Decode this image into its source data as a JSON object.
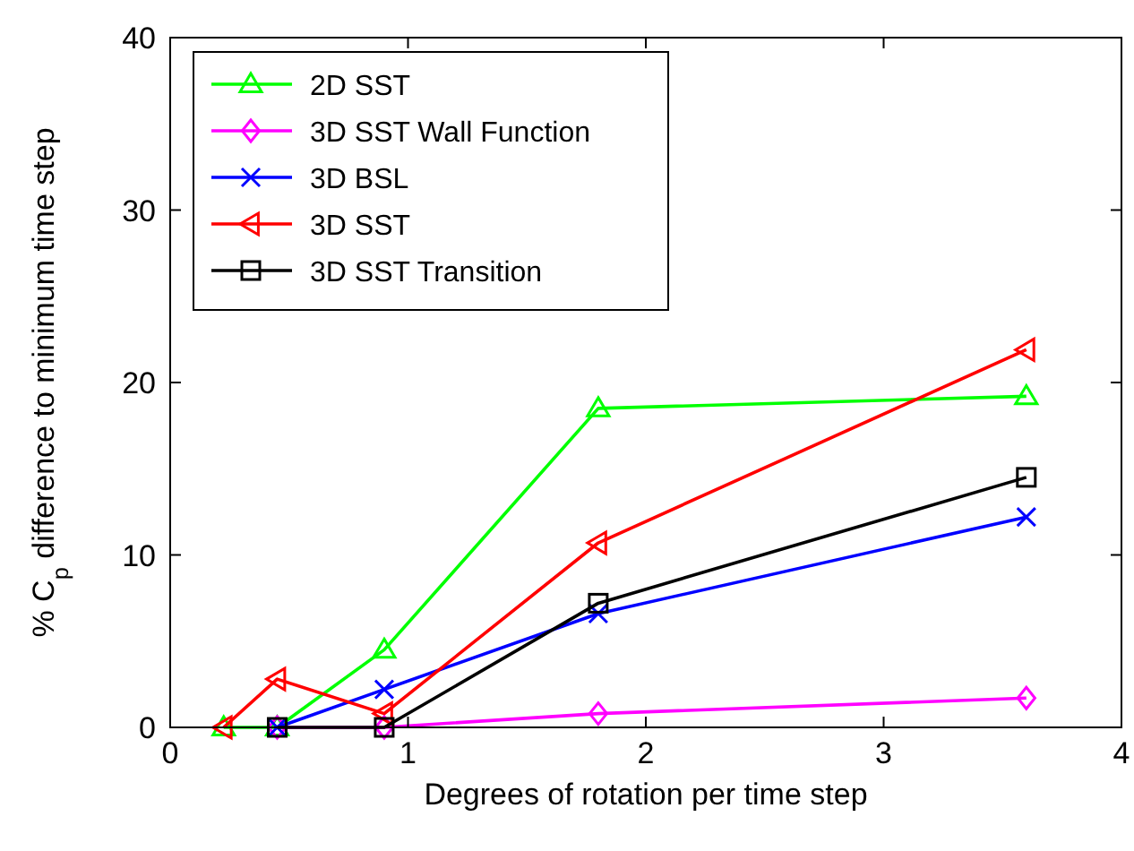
{
  "chart_data": {
    "type": "line",
    "xlabel": "Degrees of rotation per time step",
    "ylabel": "% C$_{p}$ difference to minimum time step",
    "xlim": [
      0,
      4
    ],
    "xticks": [
      0,
      1,
      2,
      3,
      4
    ],
    "ylim": [
      0,
      40
    ],
    "yticks": [
      0,
      10,
      20,
      30,
      40
    ],
    "grid": false,
    "legend": "top left",
    "line_style": "solid",
    "series": [
      {
        "name": "2D SST",
        "color": "#00ff00",
        "marker": "triangle",
        "x": [
          0.225,
          0.45,
          0.9,
          1.8,
          3.6
        ],
        "values": [
          0,
          0,
          4.5,
          18.5,
          19.2
        ]
      },
      {
        "name": "3D SST Wall Function",
        "color": "#ff00ff",
        "marker": "diamond",
        "x": [
          0.45,
          0.9,
          1.8,
          3.6
        ],
        "values": [
          0,
          0,
          0.8,
          1.7
        ]
      },
      {
        "name": "3D BSL",
        "color": "#0000ff",
        "marker": "cross",
        "x": [
          0.45,
          0.9,
          1.8,
          3.6
        ],
        "values": [
          0,
          2.2,
          6.6,
          12.2
        ]
      },
      {
        "name": "3D SST",
        "color": "#ff0000",
        "marker": "triangle-left",
        "x": [
          0.225,
          0.45,
          0.9,
          1.8,
          3.6
        ],
        "values": [
          0,
          2.8,
          0.8,
          10.7,
          21.9
        ]
      },
      {
        "name": "3D SST Transition",
        "color": "#000000",
        "marker": "square",
        "x": [
          0.45,
          0.9,
          1.8,
          3.6
        ],
        "values": [
          0,
          0,
          7.2,
          14.5
        ]
      }
    ]
  }
}
